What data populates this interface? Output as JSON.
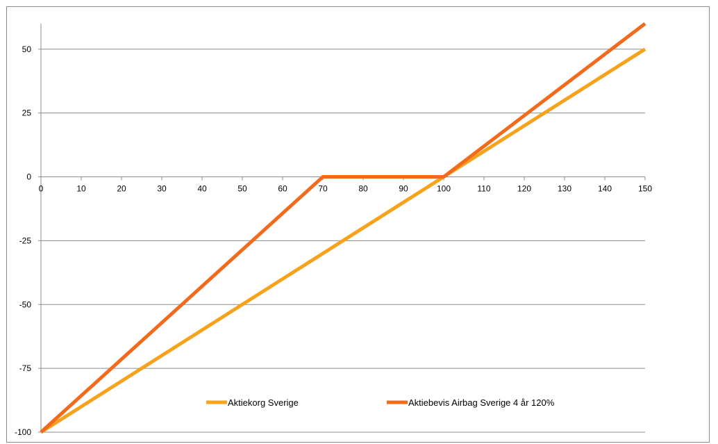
{
  "chart_data": {
    "type": "line",
    "title": "",
    "xlabel": "",
    "ylabel": "",
    "xlim": [
      0,
      150
    ],
    "ylim": [
      -100,
      60
    ],
    "x_ticks": [
      0,
      10,
      20,
      30,
      40,
      50,
      60,
      70,
      80,
      90,
      100,
      110,
      120,
      130,
      140,
      150
    ],
    "y_ticks": [
      -100,
      -75,
      -50,
      -25,
      0,
      25,
      50
    ],
    "grid": "horizontal",
    "legend_position": "bottom-center",
    "series": [
      {
        "name": "Aktiekorg Sverige",
        "color": "#f7a21b",
        "x": [
          0,
          150
        ],
        "y": [
          -100,
          50
        ]
      },
      {
        "name": "Aktiebevis Airbag Sverige 4 år 120%",
        "color": "#f26a1b",
        "x": [
          0,
          70,
          100,
          150
        ],
        "y": [
          -100,
          0,
          0,
          60
        ]
      }
    ]
  }
}
